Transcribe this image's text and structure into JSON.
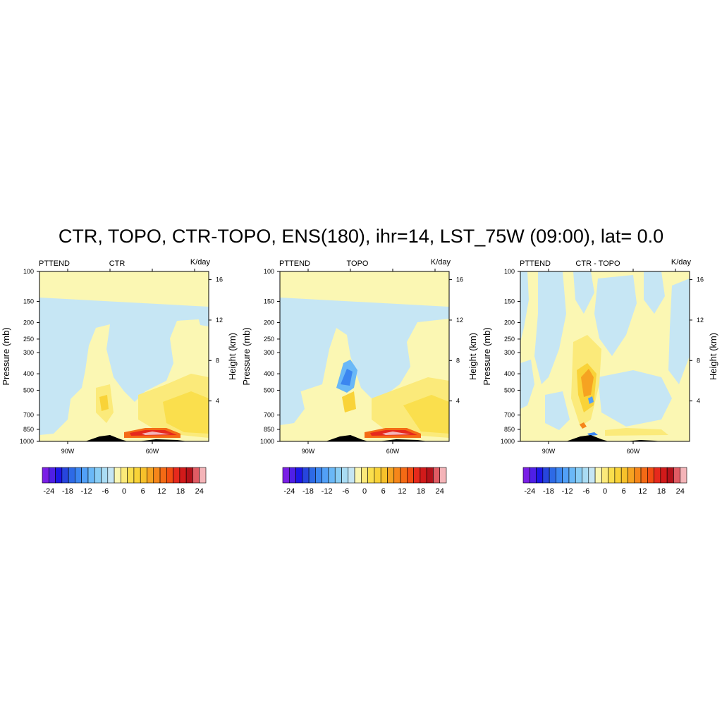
{
  "figure": {
    "title": "CTR, TOPO, CTR-TOPO, ENS(180), ihr=14, LST_75W (09:00), lat=  0.0"
  },
  "colors": {
    "palette": [
      "#7a1fe6",
      "#4f1fe6",
      "#1d17e6",
      "#2745dd",
      "#2d6ae6",
      "#3b86f0",
      "#52a0f6",
      "#6ab8f7",
      "#89cdf4",
      "#aadcf3",
      "#c6e6f4",
      "#fbf7b3",
      "#fbea7a",
      "#fadf4d",
      "#f9d338",
      "#f7c12b",
      "#f6a321",
      "#f6861a",
      "#f46a15",
      "#f24d12",
      "#e6291c",
      "#d11a1a",
      "#b3121a",
      "#e05c64",
      "#f4b4b8"
    ],
    "terrain": "#000000",
    "light_blue": "#c6e6f4",
    "light_yellow": "#fbf7b3"
  },
  "chart_data": [
    {
      "type": "heatmap",
      "variable_label": "PTTEND",
      "panel_label": "CTR",
      "units_label": "K/day",
      "ylabel": "Pressure (mb)",
      "ylabel_right": "Height (km)",
      "x_ticks": [
        {
          "value": -90,
          "label": "90W"
        },
        {
          "value": -60,
          "label": "60W"
        }
      ],
      "xlim": [
        -100,
        -40
      ],
      "y_ticks": [
        "100",
        "150",
        "200",
        "250",
        "300",
        "400",
        "500",
        "700",
        "850",
        "1000"
      ],
      "y_ticks_values": [
        100,
        150,
        200,
        250,
        300,
        400,
        500,
        700,
        850,
        1000
      ],
      "ylim": [
        1000,
        100
      ],
      "y_right_ticks": [
        "16",
        "12",
        "8",
        "4"
      ],
      "y_right_ticks_values": [
        16,
        12,
        8,
        4
      ],
      "colorbar": {
        "levels": [
          -24,
          -22,
          -20,
          -18,
          -16,
          -14,
          -12,
          -10,
          -8,
          -6,
          -4,
          -2,
          0,
          2,
          4,
          6,
          8,
          10,
          12,
          14,
          16,
          18,
          20,
          22,
          24
        ],
        "tick_labels": [
          "-24",
          "-18",
          "-12",
          "-6",
          "0",
          "6",
          "12",
          "18",
          "24"
        ],
        "tick_values": [
          -24,
          -18,
          -12,
          -6,
          0,
          6,
          12,
          18,
          24
        ]
      }
    },
    {
      "type": "heatmap",
      "variable_label": "PTTEND",
      "panel_label": "TOPO",
      "units_label": "K/day",
      "ylabel": "Pressure (mb)",
      "ylabel_right": "Height (km)",
      "x_ticks": [
        {
          "value": -90,
          "label": "90W"
        },
        {
          "value": -60,
          "label": "60W"
        }
      ],
      "xlim": [
        -100,
        -40
      ],
      "y_ticks": [
        "100",
        "150",
        "200",
        "250",
        "300",
        "400",
        "500",
        "700",
        "850",
        "1000"
      ],
      "y_ticks_values": [
        100,
        150,
        200,
        250,
        300,
        400,
        500,
        700,
        850,
        1000
      ],
      "ylim": [
        1000,
        100
      ],
      "y_right_ticks": [
        "16",
        "12",
        "8",
        "4"
      ],
      "y_right_ticks_values": [
        16,
        12,
        8,
        4
      ],
      "colorbar": {
        "levels": [
          -24,
          -22,
          -20,
          -18,
          -16,
          -14,
          -12,
          -10,
          -8,
          -6,
          -4,
          -2,
          0,
          2,
          4,
          6,
          8,
          10,
          12,
          14,
          16,
          18,
          20,
          22,
          24
        ],
        "tick_labels": [
          "-24",
          "-18",
          "-12",
          "-6",
          "0",
          "6",
          "12",
          "18",
          "24"
        ],
        "tick_values": [
          -24,
          -18,
          -12,
          -6,
          0,
          6,
          12,
          18,
          24
        ]
      }
    },
    {
      "type": "heatmap",
      "variable_label": "PTTEND",
      "panel_label": "CTR - TOPO",
      "units_label": "K/day",
      "ylabel": "Pressure (mb)",
      "ylabel_right": "Height (km)",
      "x_ticks": [
        {
          "value": -90,
          "label": "90W"
        },
        {
          "value": -60,
          "label": "60W"
        }
      ],
      "xlim": [
        -100,
        -40
      ],
      "y_ticks": [
        "100",
        "150",
        "200",
        "250",
        "300",
        "400",
        "500",
        "700",
        "850",
        "1000"
      ],
      "y_ticks_values": [
        100,
        150,
        200,
        250,
        300,
        400,
        500,
        700,
        850,
        1000
      ],
      "ylim": [
        1000,
        100
      ],
      "y_right_ticks": [
        "16",
        "12",
        "8",
        "4"
      ],
      "y_right_ticks_values": [
        16,
        12,
        8,
        4
      ],
      "colorbar": {
        "levels": [
          -24,
          -22,
          -20,
          -18,
          -16,
          -14,
          -12,
          -10,
          -8,
          -6,
          -4,
          -2,
          0,
          2,
          4,
          6,
          8,
          10,
          12,
          14,
          16,
          18,
          20,
          22,
          24
        ],
        "tick_labels": [
          "-24",
          "-18",
          "-12",
          "-6",
          "0",
          "6",
          "12",
          "18",
          "24"
        ],
        "tick_values": [
          -24,
          -18,
          -12,
          -6,
          0,
          6,
          12,
          18,
          24
        ]
      }
    }
  ]
}
